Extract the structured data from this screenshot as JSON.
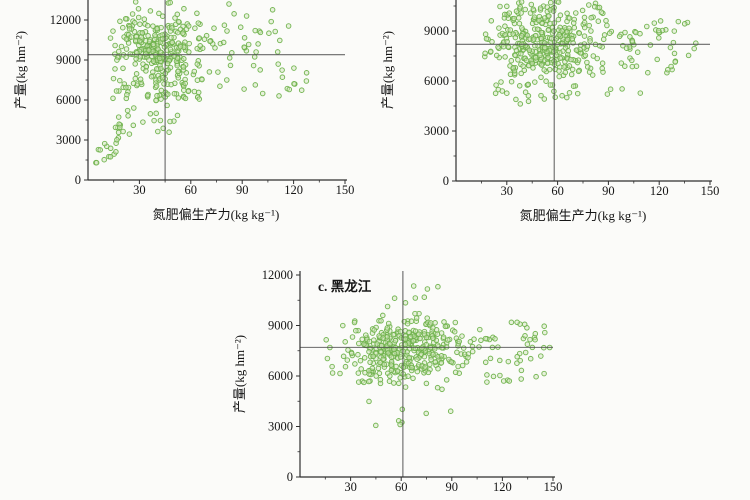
{
  "figure": {
    "background": "#fbfbf9",
    "point_stroke_color": "#6fb24c",
    "point_fill_color": "#d3e8bd",
    "axis_color": "#2f2f2f",
    "mean_line_color": "#4d4d4d",
    "text_color": "#161616",
    "marker": "open-circle"
  },
  "chart_data": [
    {
      "id": "a",
      "type": "scatter",
      "title": "",
      "xlabel": "氮肥偏生产力(kg kg⁻¹)",
      "ylabel": "产量(kg hm⁻²)",
      "xlim": [
        0,
        150
      ],
      "ylim_visible": [
        0,
        13500
      ],
      "xticks": [
        30,
        60,
        90,
        120,
        150
      ],
      "yticks": [
        0,
        3000,
        6000,
        9000,
        12000
      ],
      "x_minor_ticks": [
        15,
        45,
        75,
        105,
        135
      ],
      "y_minor_ticks": [
        1500,
        4500,
        7500,
        10500
      ],
      "grid": false,
      "legend": false,
      "mean_x": 45,
      "mean_y": 9400,
      "top_cropped": true,
      "seed": 7,
      "n_points_approx": 443,
      "clusters": [
        {
          "n": 290,
          "x": {
            "dist": "normal",
            "mu": 41,
            "sd": 12,
            "min": 13,
            "max": 80
          },
          "y": {
            "dist": "normal",
            "mu": 10000,
            "sd": 1350,
            "min": 6700,
            "max": 13400
          }
        },
        {
          "n": 55,
          "x": {
            "dist": "uniform",
            "min": 14,
            "max": 72
          },
          "y": {
            "dist": "uniform",
            "min": 5900,
            "max": 7700
          }
        },
        {
          "n": 48,
          "x": {
            "dist": "uniform",
            "min": 62,
            "max": 128
          },
          "y": {
            "dist": "uniform",
            "min": 6300,
            "max": 11800
          }
        },
        {
          "n": 28,
          "x": {
            "dist": "uniform",
            "min": 4,
            "max": 27
          },
          "y": {
            "dist": "linear",
            "slope": 150,
            "intercept": 600,
            "noise": 700,
            "min": 1300,
            "max": 5400
          }
        },
        {
          "n": 12,
          "x": {
            "dist": "uniform",
            "min": 28,
            "max": 58
          },
          "y": {
            "dist": "uniform",
            "min": 3000,
            "max": 5700
          }
        },
        {
          "n": 10,
          "x": {
            "dist": "uniform",
            "min": 80,
            "max": 112
          },
          "y": {
            "dist": "uniform",
            "min": 9500,
            "max": 13200
          }
        }
      ]
    },
    {
      "id": "b",
      "type": "scatter",
      "title": "",
      "xlabel": "氮肥偏生产力(kg kg⁻¹)",
      "ylabel": "产量(kg hm⁻²)",
      "xlim": [
        0,
        150
      ],
      "ylim_visible": [
        0,
        10860
      ],
      "xticks": [
        30,
        60,
        90,
        120,
        150
      ],
      "yticks": [
        0,
        3000,
        6000,
        9000
      ],
      "x_minor_ticks": [
        15,
        45,
        75,
        105,
        135
      ],
      "y_minor_ticks": [
        1500,
        4500,
        7500,
        10500
      ],
      "grid": false,
      "legend": false,
      "mean_x": 58,
      "mean_y": 8200,
      "top_cropped": true,
      "seed": 11,
      "n_points_approx": 462,
      "clusters": [
        {
          "n": 360,
          "x": {
            "dist": "normal",
            "mu": 52,
            "sd": 17,
            "min": 17,
            "max": 100
          },
          "y": {
            "dist": "normal",
            "mu": 8100,
            "sd": 1050,
            "min": 5700,
            "max": 10600
          }
        },
        {
          "n": 50,
          "x": {
            "dist": "uniform",
            "min": 95,
            "max": 142
          },
          "y": {
            "dist": "uniform",
            "min": 6400,
            "max": 9900
          }
        },
        {
          "n": 22,
          "x": {
            "dist": "uniform",
            "min": 22,
            "max": 72
          },
          "y": {
            "dist": "uniform",
            "min": 4600,
            "max": 5800
          }
        },
        {
          "n": 26,
          "x": {
            "dist": "uniform",
            "min": 28,
            "max": 88
          },
          "y": {
            "dist": "uniform",
            "min": 9700,
            "max": 10800
          }
        },
        {
          "n": 4,
          "x": {
            "dist": "uniform",
            "min": 88,
            "max": 132
          },
          "y": {
            "dist": "uniform",
            "min": 4700,
            "max": 5700
          }
        }
      ]
    },
    {
      "id": "c",
      "type": "scatter",
      "title": "c. 黑龙江",
      "xlabel": "",
      "ylabel": "产量(kg hm⁻²)",
      "xlim": [
        0,
        150
      ],
      "ylim_visible": [
        0,
        12400
      ],
      "xticks": [
        30,
        60,
        90,
        120,
        150
      ],
      "yticks": [
        0,
        3000,
        6000,
        9000,
        12000
      ],
      "x_minor_ticks": [
        15,
        45,
        75,
        105,
        135
      ],
      "y_minor_ticks": [
        1500,
        4500,
        7500,
        10500
      ],
      "grid": false,
      "legend": false,
      "mean_x": 61,
      "mean_y": 7700,
      "top_cropped": false,
      "seed": 13,
      "n_points_approx": 466,
      "clusters": [
        {
          "n": 400,
          "x": {
            "dist": "normal",
            "mu": 62,
            "sd": 19,
            "min": 24,
            "max": 126
          },
          "y": {
            "dist": "normal",
            "mu": 7400,
            "sd": 1000,
            "min": 5100,
            "max": 9600
          }
        },
        {
          "n": 42,
          "x": {
            "dist": "uniform",
            "min": 108,
            "max": 150
          },
          "y": {
            "dist": "uniform",
            "min": 5700,
            "max": 9300
          }
        },
        {
          "n": 10,
          "x": {
            "dist": "uniform",
            "min": 44,
            "max": 82
          },
          "y": {
            "dist": "uniform",
            "min": 9700,
            "max": 11500
          }
        },
        {
          "n": 8,
          "x": {
            "dist": "uniform",
            "min": 33,
            "max": 92
          },
          "y": {
            "dist": "uniform",
            "min": 2900,
            "max": 4600
          }
        },
        {
          "n": 6,
          "x": {
            "dist": "uniform",
            "min": 11,
            "max": 24
          },
          "y": {
            "dist": "uniform",
            "min": 6000,
            "max": 8300
          }
        }
      ]
    }
  ]
}
